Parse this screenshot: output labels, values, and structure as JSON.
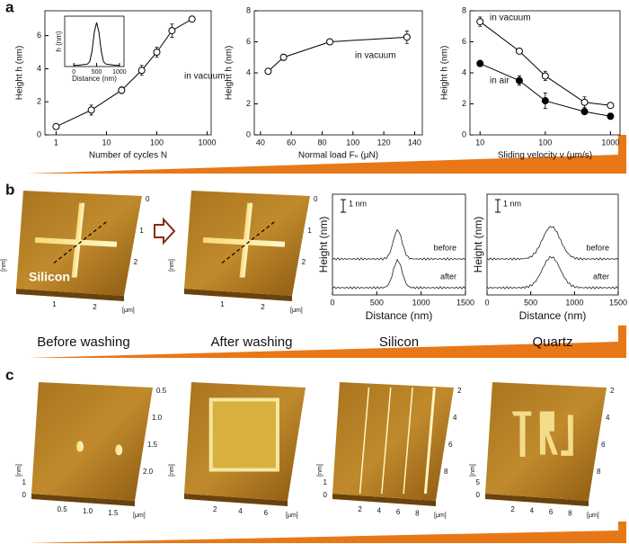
{
  "chart_data": [
    {
      "type": "line",
      "log_x": true,
      "x": [
        1,
        5,
        20,
        50,
        100,
        200,
        500
      ],
      "series": [
        {
          "color": "#000000",
          "marker": "open",
          "values": [
            0.5,
            1.5,
            2.7,
            3.9,
            5.0,
            6.3,
            7.0
          ],
          "errors": [
            0.15,
            0.3,
            0.2,
            0.3,
            0.3,
            0.4,
            0.1
          ]
        }
      ],
      "xlim": [
        0.6,
        1200
      ],
      "xticks": [
        1,
        10,
        100,
        1000
      ],
      "ylim": [
        0,
        7.5
      ],
      "yticks": [
        0,
        2,
        4,
        6
      ],
      "x_label": "Number of cycles N",
      "y_label": "Height h (nm)",
      "annotations": [
        "in vacuum"
      ]
    },
    {
      "type": "line",
      "log_x": false,
      "x": [
        45,
        55,
        85,
        135
      ],
      "series": [
        {
          "color": "#000000",
          "marker": "open",
          "values": [
            4.1,
            5.0,
            6.0,
            6.3
          ],
          "errors": [
            0.15,
            0.2,
            0.15,
            0.4
          ]
        }
      ],
      "xlim": [
        36,
        145
      ],
      "xticks": [
        40,
        60,
        80,
        100,
        120,
        140
      ],
      "ylim": [
        0,
        8
      ],
      "yticks": [
        0,
        2,
        4,
        6,
        8
      ],
      "x_label": "Normal load Fₙ (μN)",
      "y_label": "Height h (nm)",
      "annotations": [
        "in vacuum"
      ]
    },
    {
      "type": "line",
      "log_x": true,
      "x": [
        10,
        40,
        100,
        400,
        1000
      ],
      "series": [
        {
          "color": "#000000",
          "marker": "open",
          "values": [
            7.3,
            5.4,
            3.8,
            2.1,
            1.9
          ],
          "errors": [
            0.3,
            0.15,
            0.3,
            0.35,
            0.15
          ]
        },
        {
          "color": "#000000",
          "marker": "filled",
          "values": [
            4.6,
            3.5,
            2.2,
            1.5,
            1.2
          ],
          "errors": [
            0.2,
            0.3,
            0.5,
            0.15,
            0.2
          ]
        }
      ],
      "xlim": [
        7,
        1400
      ],
      "xticks": [
        10,
        100,
        1000
      ],
      "ylim": [
        0,
        8
      ],
      "yticks": [
        0,
        2,
        4,
        6,
        8
      ],
      "x_label": "Sliding velocity v (μm/s)",
      "y_label": "Height h (nm)",
      "annotations": [
        "in vacuum",
        "in air"
      ]
    },
    {
      "type": "line",
      "log_x": false,
      "x": [
        0,
        100,
        200,
        300,
        350,
        400,
        450,
        500,
        550,
        600,
        650,
        700,
        800,
        900,
        1000
      ],
      "series": [
        {
          "color": "#000000",
          "marker": "none",
          "values": [
            0.2,
            0.2,
            0.3,
            0.4,
            0.8,
            2.5,
            5.5,
            7,
            5.5,
            2.5,
            0.8,
            0.4,
            0.3,
            0.2,
            0.2
          ]
        }
      ],
      "xlim": [
        -200,
        1100
      ],
      "xticks": [
        0,
        500,
        1000
      ],
      "ylim": [
        0,
        8
      ],
      "x_label": "Distance (nm)",
      "y_label": "h (nm)",
      "annotations": []
    }
  ],
  "panel_labels": [
    "a",
    "b",
    "c"
  ],
  "panel_b": {
    "images": [
      {
        "caption": "Before washing",
        "overlay": "Silicon",
        "side_ticks": [
          "0",
          "1",
          "2"
        ],
        "bottom_ticks": [
          "1",
          "2"
        ],
        "z_unit": "[nm]",
        "x_unit": "[μm]"
      },
      {
        "caption": "After washing",
        "side_ticks": [
          "0",
          "1",
          "2"
        ],
        "bottom_ticks": [
          "1",
          "2"
        ],
        "z_unit": "[nm]",
        "x_unit": "[μm]"
      }
    ],
    "profiles": [
      {
        "caption": "Silicon",
        "y_label": "Height (nm)",
        "x_label": "Distance (nm)",
        "x_ticks": [
          "0",
          "500",
          "1000",
          "1500"
        ],
        "scale": "1 nm",
        "curves": [
          "before",
          "after"
        ]
      },
      {
        "caption": "Quartz",
        "y_label": "Height (nm)",
        "x_label": "Distance (nm)",
        "x_ticks": [
          "0",
          "500",
          "1000",
          "1500"
        ],
        "scale": "1 nm",
        "curves": [
          "before",
          "after"
        ]
      }
    ]
  },
  "panel_c": {
    "images": [
      {
        "side_ticks": [
          "0.5",
          "1.0",
          "1.5",
          "2.0"
        ],
        "bottom_ticks": [
          "0.5",
          "1.0",
          "1.5"
        ],
        "z_ticks": [
          "0",
          "1"
        ],
        "z_unit": "[nm]",
        "x_unit": "[μm]"
      },
      {
        "side_ticks": [],
        "bottom_ticks": [
          "2",
          "4",
          "6"
        ],
        "z_ticks": [],
        "z_unit": "[nm]",
        "x_unit": "[μm]"
      },
      {
        "side_ticks": [
          "2",
          "4",
          "6",
          "8"
        ],
        "bottom_ticks": [
          "2",
          "4",
          "6",
          "8"
        ],
        "z_ticks": [
          "0",
          "1"
        ],
        "z_unit": "[nm]",
        "x_unit": "[μm]"
      },
      {
        "side_ticks": [
          "2",
          "4",
          "6",
          "8"
        ],
        "bottom_ticks": [
          "2",
          "4",
          "6",
          "8"
        ],
        "z_ticks": [
          "0",
          "5"
        ],
        "z_unit": "[nm]",
        "x_unit": "[μm]"
      }
    ]
  }
}
